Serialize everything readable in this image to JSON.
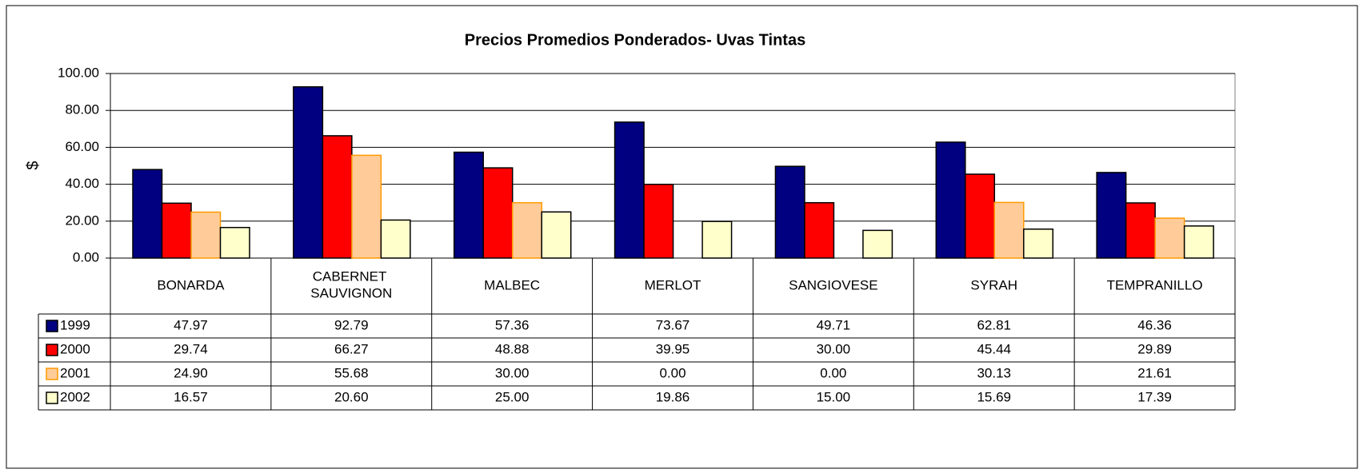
{
  "chart_data": {
    "type": "bar",
    "title": "Precios Promedios Ponderados- Uvas Tintas",
    "y_label": "$",
    "categories": [
      "BONARDA",
      "CABERNET SAUVIGNON",
      "MALBEC",
      "MERLOT",
      "SANGIOVESE",
      "SYRAH",
      "TEMPRANILLO"
    ],
    "series": [
      {
        "name": "1999",
        "color": "#000080",
        "edge": "#000000",
        "values": [
          47.97,
          92.79,
          57.36,
          73.67,
          49.71,
          62.81,
          46.36
        ],
        "value_labels": [
          "47.97",
          "92.79",
          "57.36",
          "73.67",
          "49.71",
          "62.81",
          "46.36"
        ]
      },
      {
        "name": "2000",
        "color": "#ff0000",
        "edge": "#000000",
        "values": [
          29.74,
          66.27,
          48.88,
          39.95,
          30,
          45.44,
          29.89
        ],
        "value_labels": [
          "29.74",
          "66.27",
          "48.88",
          "39.95",
          "30.00",
          "45.44",
          "29.89"
        ]
      },
      {
        "name": "2001",
        "color": "#ffcc99",
        "edge": "#ff9900",
        "values": [
          24.9,
          55.68,
          30,
          0,
          0,
          30.13,
          21.61
        ],
        "value_labels": [
          "24.90",
          "55.68",
          "30.00",
          "0.00",
          "0.00",
          "30.13",
          "21.61"
        ]
      },
      {
        "name": "2002",
        "color": "#ffffcc",
        "edge": "#000000",
        "values": [
          16.57,
          20.6,
          25,
          19.86,
          15,
          15.69,
          17.39
        ],
        "value_labels": [
          "16.57",
          "20.60",
          "25.00",
          "19.86",
          "15.00",
          "15.69",
          "17.39"
        ]
      }
    ],
    "ylim": [
      0,
      100
    ],
    "yticks": [
      {
        "value": 0,
        "label": "0.00"
      },
      {
        "value": 20,
        "label": "20.00"
      },
      {
        "value": 40,
        "label": "40.00"
      },
      {
        "value": 60,
        "label": "60.00"
      },
      {
        "value": 80,
        "label": "80.00"
      },
      {
        "value": 100,
        "label": "100.00"
      }
    ],
    "grid": true
  }
}
